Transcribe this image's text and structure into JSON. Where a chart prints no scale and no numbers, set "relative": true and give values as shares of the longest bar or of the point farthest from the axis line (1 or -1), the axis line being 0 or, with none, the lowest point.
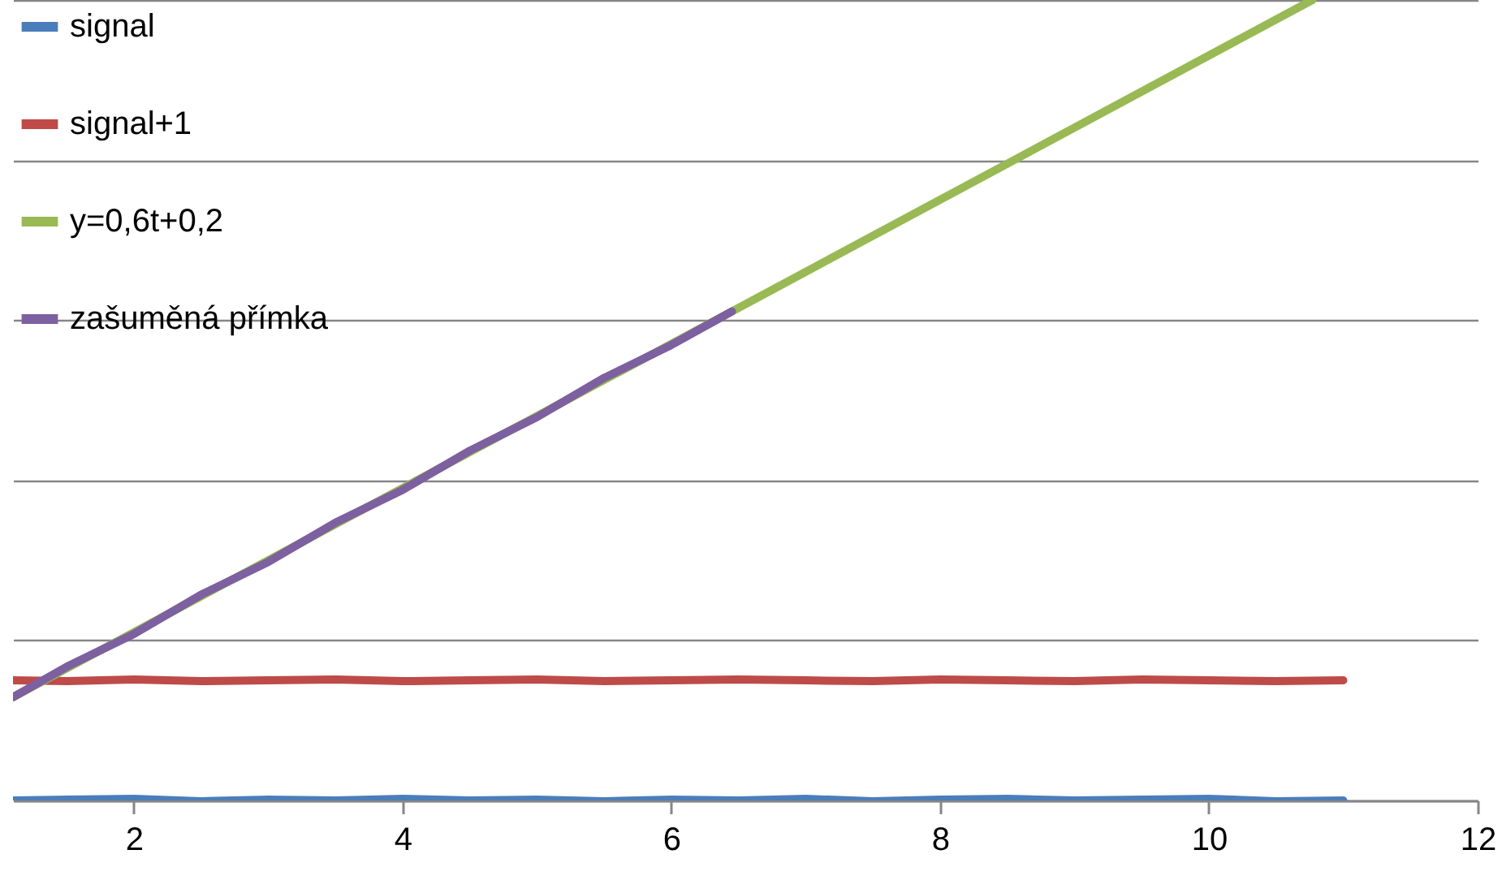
{
  "chart_data": {
    "type": "line",
    "relative": true,
    "xlim": [
      1.1,
      12
    ],
    "xticks": [
      2,
      4,
      6,
      8,
      10,
      12
    ],
    "grid": "y",
    "legend": "top left",
    "marker": "none",
    "line_style": "solid",
    "series": [
      {
        "name": "signal",
        "color": "#4a7ebb",
        "x": [
          1.1,
          1.5,
          2,
          2.5,
          3,
          3.5,
          4,
          4.5,
          5,
          5.5,
          6,
          6.5,
          7,
          7.5,
          8,
          8.5,
          9,
          9.5,
          10,
          10.5,
          11
        ],
        "values": [
          0,
          0.001,
          0.002,
          -0.001,
          0.001,
          0,
          0.002,
          0,
          0.001,
          -0.001,
          0.001,
          0,
          0.002,
          -0.001,
          0.001,
          0.002,
          0,
          0.001,
          0.002,
          -0.001,
          0
        ]
      },
      {
        "name": "signal+1",
        "color": "#be4b48",
        "x": [
          1.1,
          1.5,
          2,
          2.5,
          3,
          3.5,
          4,
          4.5,
          5,
          5.5,
          6,
          6.5,
          7,
          7.5,
          8,
          8.5,
          9,
          9.5,
          10,
          10.5,
          11
        ],
        "values": [
          0.15,
          0.149,
          0.151,
          0.149,
          0.15,
          0.151,
          0.149,
          0.15,
          0.151,
          0.149,
          0.15,
          0.151,
          0.15,
          0.149,
          0.151,
          0.15,
          0.149,
          0.151,
          0.15,
          0.149,
          0.15
        ]
      },
      {
        "name": "y=0,6t+0,2",
        "color": "#98b954",
        "x": [
          1.1,
          10.77
        ],
        "values": [
          0.129,
          1
        ]
      },
      {
        "name": "zašuměná přímka",
        "color": "#7d60a0",
        "x": [
          1.1,
          1.5,
          2,
          2.5,
          3,
          3.5,
          4,
          4.5,
          5,
          5.5,
          6,
          6.45
        ],
        "values": [
          0.129,
          0.167,
          0.208,
          0.257,
          0.298,
          0.347,
          0.388,
          0.437,
          0.479,
          0.528,
          0.569,
          0.611
        ]
      }
    ]
  }
}
